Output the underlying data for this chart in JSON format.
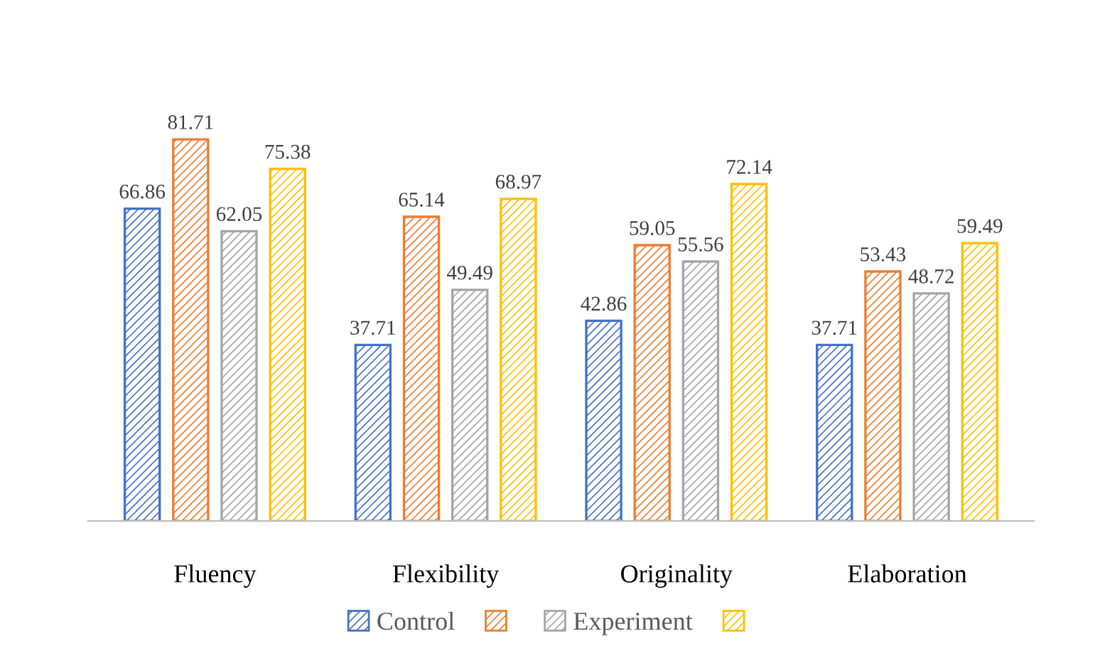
{
  "chart_data": {
    "type": "bar",
    "categories": [
      "Fluency",
      "Flexibility",
      "Originality",
      "Elaboration"
    ],
    "series": [
      {
        "name": "Control",
        "color": "#4472c4",
        "values": [
          66.86,
          37.71,
          42.86,
          37.71
        ]
      },
      {
        "color": "#ed7d31",
        "values": [
          81.71,
          65.14,
          59.05,
          53.43
        ]
      },
      {
        "name": "Experiment",
        "color": "#a5a5a5",
        "values": [
          62.05,
          49.49,
          55.56,
          48.72
        ]
      },
      {
        "color": "#ffc000",
        "values": [
          75.38,
          68.97,
          72.14,
          59.49
        ]
      }
    ],
    "data_labels": true,
    "legend": "bottom",
    "grid": false
  }
}
